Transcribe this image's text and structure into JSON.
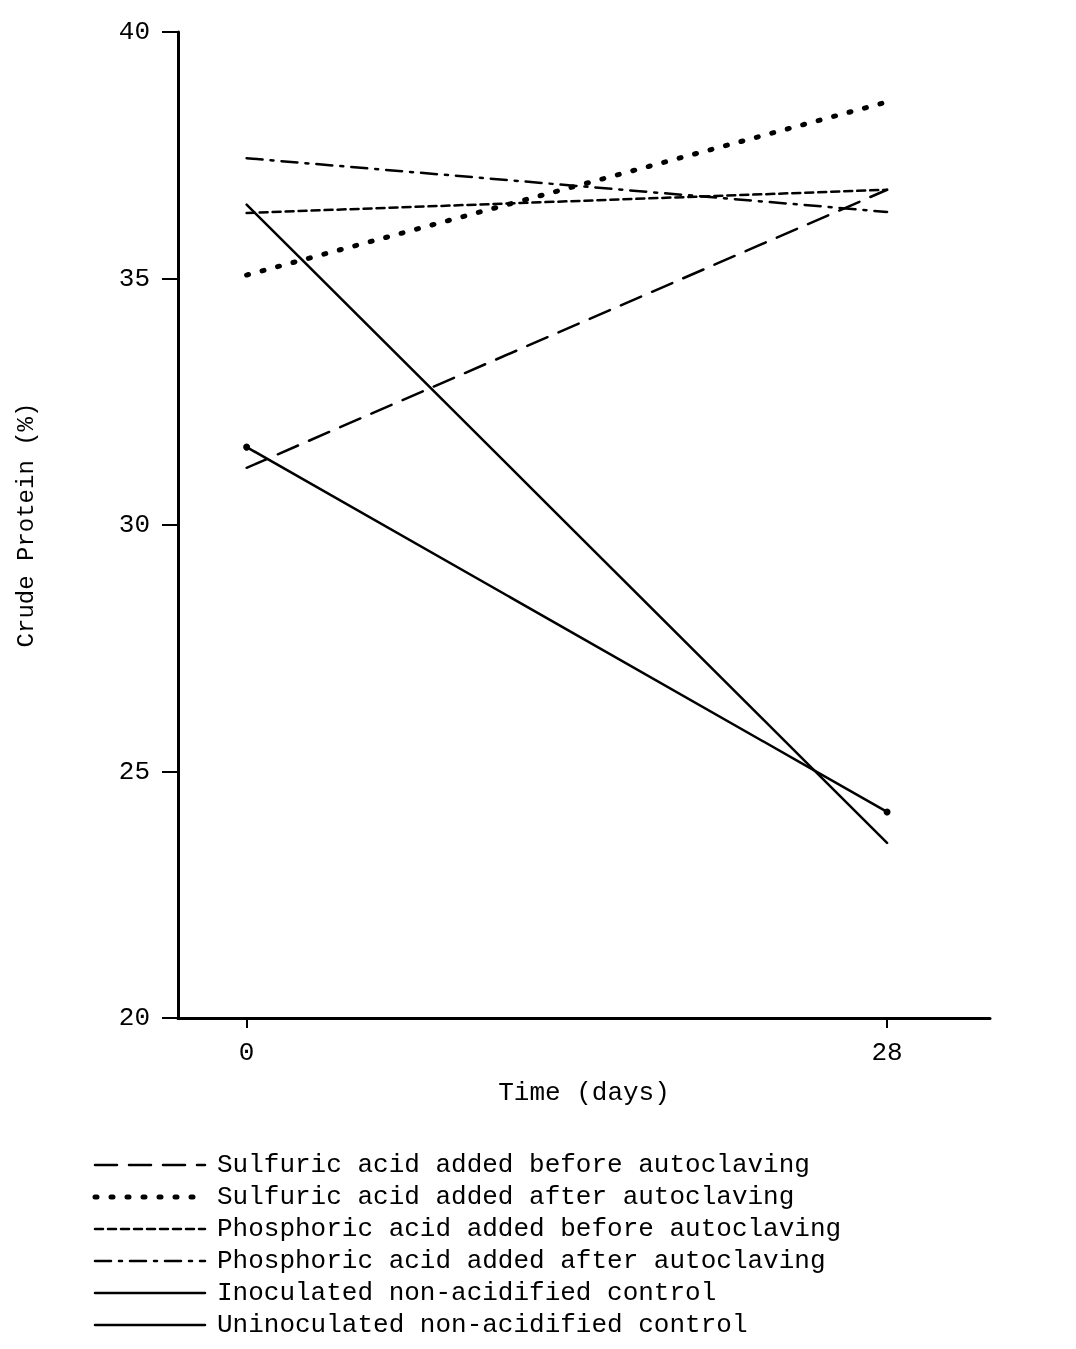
{
  "chart_data": {
    "type": "line",
    "xlabel": "Time (days)",
    "ylabel": "Crude Protein (%)",
    "x": [
      0,
      28
    ],
    "xlim": [
      -3,
      32.5
    ],
    "xticks": [
      0,
      28
    ],
    "ylim": [
      20,
      40
    ],
    "yticks": [
      20,
      25,
      30,
      35,
      40
    ],
    "grid": false,
    "legend": "bottom",
    "marker": "none",
    "series": [
      {
        "name": "Sulfuric acid added before autoclaving",
        "color": "#000000",
        "line_style": "dashed",
        "values": [
          31.16,
          36.8
        ]
      },
      {
        "name": "Sulfuric acid added after autoclaving",
        "color": "#000000",
        "line_style": "dotted",
        "values": [
          35.07,
          38.58
        ]
      },
      {
        "name": "Phosphoric acid added before autoclaving",
        "color": "#000000",
        "line_style": "shortdash",
        "values": [
          36.33,
          36.8
        ]
      },
      {
        "name": "Phosphoric acid added after autoclaving",
        "color": "#000000",
        "line_style": "dashdot",
        "values": [
          37.44,
          36.35
        ]
      },
      {
        "name": "Inoculated non-acidified control",
        "color": "#000000",
        "line_style": "solid",
        "values": [
          36.5,
          23.55
        ]
      },
      {
        "name": "Uninoculated non-acidified control",
        "color": "#000000",
        "line_style": "solid",
        "marker": "circle",
        "values": [
          31.58,
          24.18
        ]
      }
    ]
  }
}
